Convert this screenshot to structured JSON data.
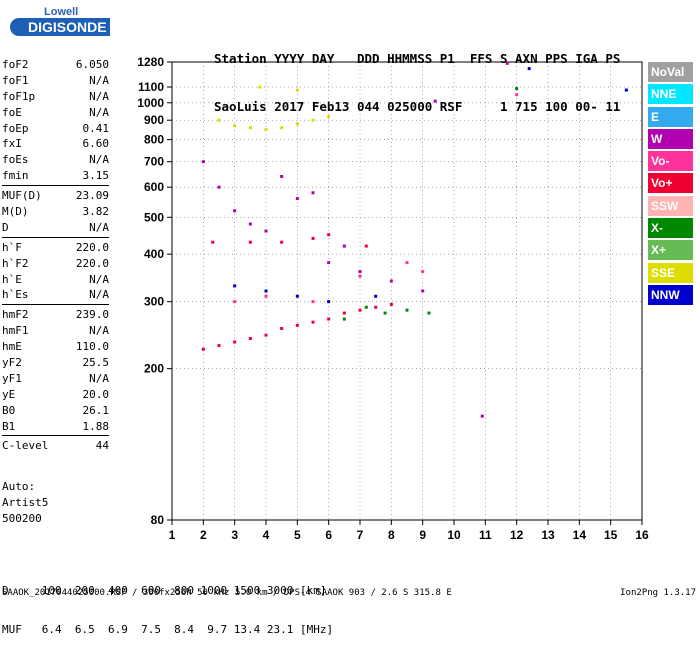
{
  "logo": {
    "line1": "Lowell",
    "line2": "DIGISONDE"
  },
  "header": {
    "line1": "Station YYYY DAY   DDD HHMMSS P1  FFS S AXN PPS IGA PS",
    "line2": "SaoLuis 2017 Feb13 044 025000 RSF     1 715 100 00- 11"
  },
  "params": [
    [
      {
        "k": "foF2",
        "v": "6.050"
      },
      {
        "k": "foF1",
        "v": "N/A"
      },
      {
        "k": "foF1p",
        "v": "N/A"
      },
      {
        "k": "foE",
        "v": "N/A"
      },
      {
        "k": "foEp",
        "v": "0.41"
      },
      {
        "k": "fxI",
        "v": "6.60"
      },
      {
        "k": "foEs",
        "v": "N/A"
      },
      {
        "k": "fmin",
        "v": "3.15"
      }
    ],
    [
      {
        "k": "MUF(D)",
        "v": "23.09"
      },
      {
        "k": "M(D)",
        "v": "3.82"
      },
      {
        "k": "D",
        "v": "N/A"
      }
    ],
    [
      {
        "k": "h`F",
        "v": "220.0"
      },
      {
        "k": "h`F2",
        "v": "220.0"
      },
      {
        "k": "h`E",
        "v": "N/A"
      },
      {
        "k": "h`Es",
        "v": "N/A"
      }
    ],
    [
      {
        "k": "hmF2",
        "v": "239.0"
      },
      {
        "k": "hmF1",
        "v": "N/A"
      },
      {
        "k": "hmE",
        "v": "110.0"
      },
      {
        "k": "yF2",
        "v": "25.5"
      },
      {
        "k": "yF1",
        "v": "N/A"
      },
      {
        "k": "yE",
        "v": "20.0"
      },
      {
        "k": "B0",
        "v": "26.1"
      },
      {
        "k": "B1",
        "v": "1.88"
      }
    ],
    [
      {
        "k": "C-level",
        "v": "44"
      }
    ]
  ],
  "auto": [
    "Auto:",
    "Artist5",
    "500200"
  ],
  "legend": [
    {
      "label": "NoVal",
      "color": "#a0a0a0"
    },
    {
      "label": "NNE",
      "color": "#00e8ff"
    },
    {
      "label": "E",
      "color": "#33aaee"
    },
    {
      "label": "W",
      "color": "#b000b0"
    },
    {
      "label": "Vo-",
      "color": "#ff3399"
    },
    {
      "label": "Vo+",
      "color": "#ee0033"
    },
    {
      "label": "SSW",
      "color": "#ffb3b3"
    },
    {
      "label": "X-",
      "color": "#008800"
    },
    {
      "label": "X+",
      "color": "#66bb55"
    },
    {
      "label": "SSE",
      "color": "#dddd00"
    },
    {
      "label": "NNW",
      "color": "#0000cc"
    }
  ],
  "dmuf": {
    "line1": "D     100  200  400  600  800 1000 1500 3000 [km]",
    "line2": "MUF   6.4  6.5  6.9  7.5  8.4  9.7 13.4 23.1 [MHz]"
  },
  "footer": {
    "left": "SAAOK_2017044025000.RSF / 300fx256h 50 kHz 5.0 km / DPS-4 SAAOK 903 / 2.6 S 315.8 E",
    "right": "Ion2Png 1.3.17"
  },
  "chart_data": {
    "type": "scatter",
    "title": "",
    "xlabel": "",
    "ylabel": "",
    "x_unit": "MHz",
    "y_unit": "km",
    "xlim": [
      1,
      16
    ],
    "ylim": [
      80,
      1280
    ],
    "y_scale": "log",
    "xticks": [
      1,
      2,
      3,
      4,
      5,
      6,
      7,
      8,
      9,
      10,
      11,
      12,
      13,
      14,
      15,
      16
    ],
    "yticks": [
      80,
      200,
      300,
      400,
      500,
      600,
      700,
      800,
      900,
      1000,
      1100,
      1280
    ],
    "grid": "dotted",
    "legend_position": "right",
    "series": [
      {
        "name": "Vo+",
        "color": "#ee0033",
        "points": [
          [
            2.0,
            225
          ],
          [
            2.5,
            230
          ],
          [
            3.0,
            235
          ],
          [
            3.5,
            240
          ],
          [
            4.0,
            245
          ],
          [
            4.5,
            255
          ],
          [
            5.0,
            260
          ],
          [
            5.5,
            265
          ],
          [
            6.0,
            270
          ],
          [
            6.5,
            280
          ],
          [
            7.0,
            285
          ],
          [
            7.5,
            290
          ],
          [
            8.0,
            295
          ],
          [
            2.3,
            430
          ],
          [
            3.5,
            430
          ],
          [
            4.5,
            430
          ],
          [
            5.5,
            440
          ],
          [
            6.0,
            450
          ],
          [
            7.2,
            420
          ]
        ]
      },
      {
        "name": "W",
        "color": "#b000b0",
        "points": [
          [
            2.0,
            700
          ],
          [
            2.5,
            600
          ],
          [
            3.0,
            520
          ],
          [
            3.5,
            480
          ],
          [
            4.0,
            460
          ],
          [
            4.5,
            640
          ],
          [
            5.0,
            560
          ],
          [
            5.5,
            580
          ],
          [
            6.0,
            380
          ],
          [
            6.5,
            420
          ],
          [
            7.0,
            360
          ],
          [
            8.0,
            340
          ],
          [
            9.0,
            320
          ],
          [
            9.4,
            1010
          ],
          [
            10.9,
            150
          ],
          [
            11.7,
            1270
          ]
        ]
      },
      {
        "name": "SSE",
        "color": "#dddd00",
        "points": [
          [
            2.5,
            900
          ],
          [
            3.0,
            870
          ],
          [
            3.5,
            860
          ],
          [
            4.0,
            850
          ],
          [
            4.5,
            860
          ],
          [
            5.0,
            880
          ],
          [
            5.5,
            900
          ],
          [
            6.0,
            920
          ],
          [
            3.8,
            1100
          ],
          [
            5.0,
            1080
          ]
        ]
      },
      {
        "name": "X-",
        "color": "#008800",
        "points": [
          [
            6.5,
            270
          ],
          [
            7.2,
            290
          ],
          [
            7.8,
            280
          ],
          [
            8.5,
            285
          ],
          [
            9.2,
            280
          ],
          [
            12.0,
            1090
          ]
        ]
      },
      {
        "name": "NNW",
        "color": "#0000cc",
        "points": [
          [
            3.0,
            330
          ],
          [
            4.0,
            320
          ],
          [
            5.0,
            310
          ],
          [
            6.0,
            300
          ],
          [
            7.5,
            310
          ],
          [
            12.4,
            1230
          ],
          [
            15.5,
            1080
          ]
        ]
      },
      {
        "name": "Vo-",
        "color": "#ff3399",
        "points": [
          [
            3.0,
            300
          ],
          [
            4.0,
            310
          ],
          [
            5.5,
            300
          ],
          [
            7.0,
            350
          ],
          [
            8.5,
            380
          ],
          [
            9.0,
            360
          ],
          [
            12.0,
            1050
          ]
        ]
      }
    ]
  }
}
